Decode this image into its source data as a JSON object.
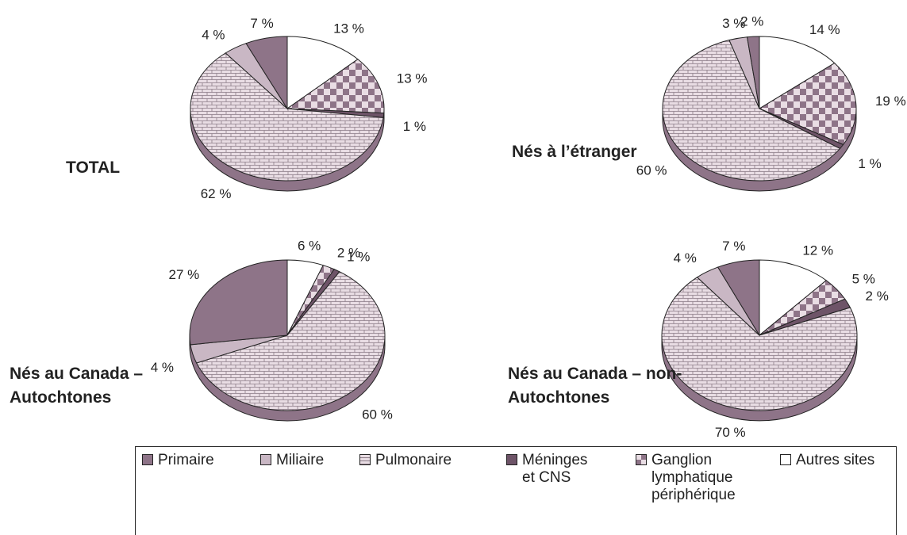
{
  "chart_data": [
    {
      "type": "pie",
      "title": "TOTAL",
      "categories": [
        "Primaire",
        "Miliaire",
        "Pulmonaire",
        "Méninges et CNS",
        "Ganglion lymphatique périphérique",
        "Autres sites"
      ],
      "values": [
        7,
        4,
        62,
        1,
        13,
        13
      ],
      "value_labels": [
        "7 %",
        "4 %",
        "62 %",
        "1 %",
        "13 %",
        "13 %"
      ],
      "colors": [
        "#8e7488",
        "#c9b7c4",
        "#e9dde4",
        "#6e5468",
        "#8e7488",
        "#ffffff"
      ],
      "patterns": [
        "solid",
        "solid",
        "brick",
        "solid",
        "checker",
        "solid"
      ]
    },
    {
      "type": "pie",
      "title": "Nés à l’étranger",
      "categories": [
        "Primaire",
        "Miliaire",
        "Pulmonaire",
        "Méninges et CNS",
        "Ganglion lymphatique périphérique",
        "Autres sites"
      ],
      "values": [
        2,
        3,
        60,
        1,
        19,
        14
      ],
      "value_labels": [
        "2 %",
        "3 %",
        "60 %",
        "1 %",
        "19 %",
        "14 %"
      ],
      "colors": [
        "#8e7488",
        "#c9b7c4",
        "#e9dde4",
        "#6e5468",
        "#8e7488",
        "#ffffff"
      ],
      "patterns": [
        "solid",
        "solid",
        "brick",
        "solid",
        "checker",
        "solid"
      ]
    },
    {
      "type": "pie",
      "title": "Nés au Canada – Autochtones",
      "categories": [
        "Primaire",
        "Miliaire",
        "Pulmonaire",
        "Méninges et CNS",
        "Ganglion lymphatique périphérique",
        "Autres sites"
      ],
      "values": [
        27,
        4,
        60,
        1,
        2,
        6
      ],
      "value_labels": [
        "27 %",
        "4 %",
        "60 %",
        "1 %",
        "2 %",
        "6 %"
      ],
      "colors": [
        "#8e7488",
        "#c9b7c4",
        "#e9dde4",
        "#6e5468",
        "#8e7488",
        "#ffffff"
      ],
      "patterns": [
        "solid",
        "solid",
        "brick",
        "solid",
        "checker",
        "solid"
      ]
    },
    {
      "type": "pie",
      "title": "Nés au Canada – non-Autochtones",
      "categories": [
        "Primaire",
        "Miliaire",
        "Pulmonaire",
        "Méninges et CNS",
        "Ganglion lymphatique périphérique",
        "Autres sites"
      ],
      "values": [
        7,
        4,
        70,
        2,
        5,
        12
      ],
      "value_labels": [
        "7 %",
        "4 %",
        "70 %",
        "2 %",
        "5 %",
        "12 %"
      ],
      "colors": [
        "#8e7488",
        "#c9b7c4",
        "#e9dde4",
        "#6e5468",
        "#8e7488",
        "#ffffff"
      ],
      "patterns": [
        "solid",
        "solid",
        "brick",
        "solid",
        "checker",
        "solid"
      ]
    }
  ]
}
